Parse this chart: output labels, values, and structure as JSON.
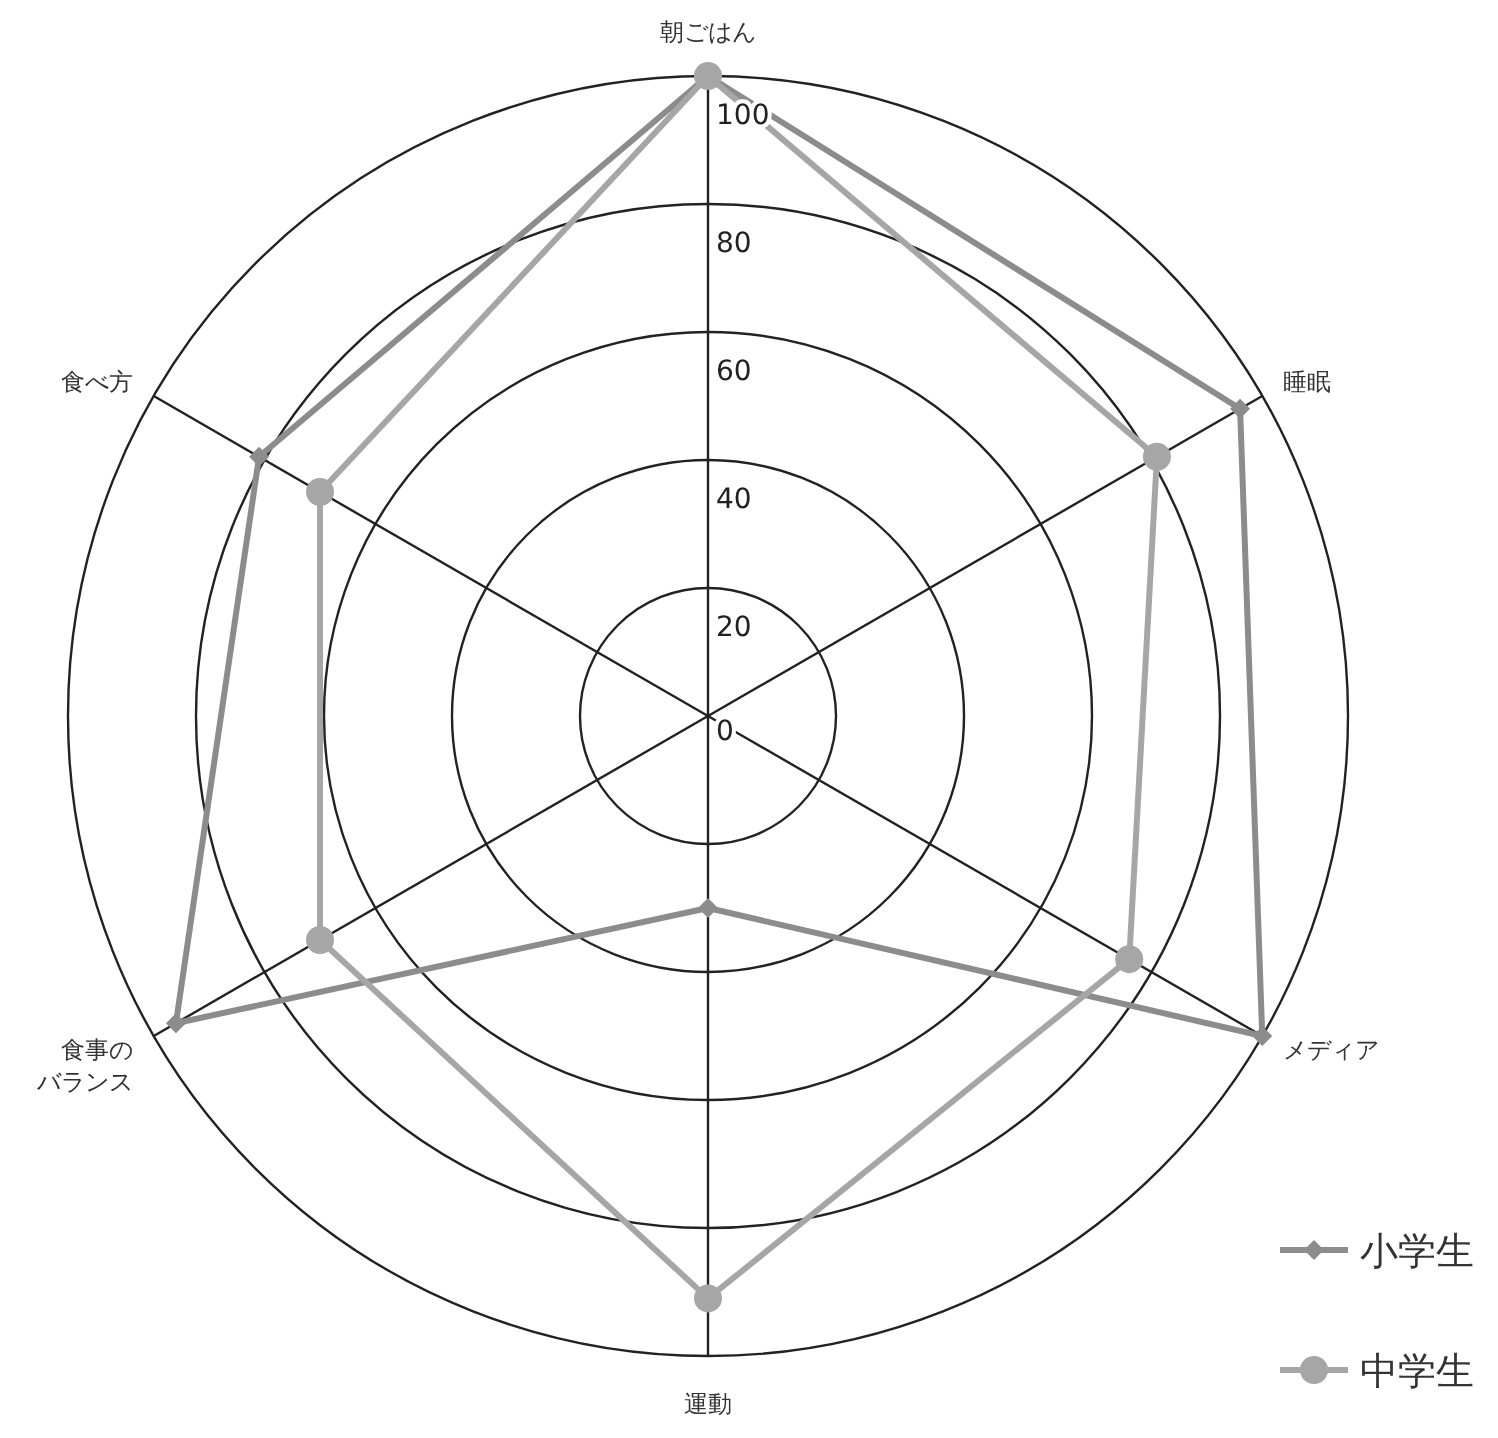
{
  "chart_data": {
    "type": "radar",
    "categories": [
      "朝ごはん",
      "睡眠",
      "メディア",
      "運動",
      "食事のバランス",
      "食べ方"
    ],
    "series": [
      {
        "name": "小学生",
        "color": "#8c8c8c",
        "values": [
          100,
          96,
          100,
          30,
          96,
          81
        ],
        "marker": "diamond"
      },
      {
        "name": "中学生",
        "color": "#a6a6a6",
        "values": [
          100,
          81,
          76,
          91,
          70,
          70
        ],
        "marker": "circle"
      }
    ],
    "ylim": [
      0,
      100
    ],
    "yticks": [
      0,
      20,
      40,
      60,
      80,
      100
    ],
    "grid": true,
    "legend": "bottom right"
  }
}
